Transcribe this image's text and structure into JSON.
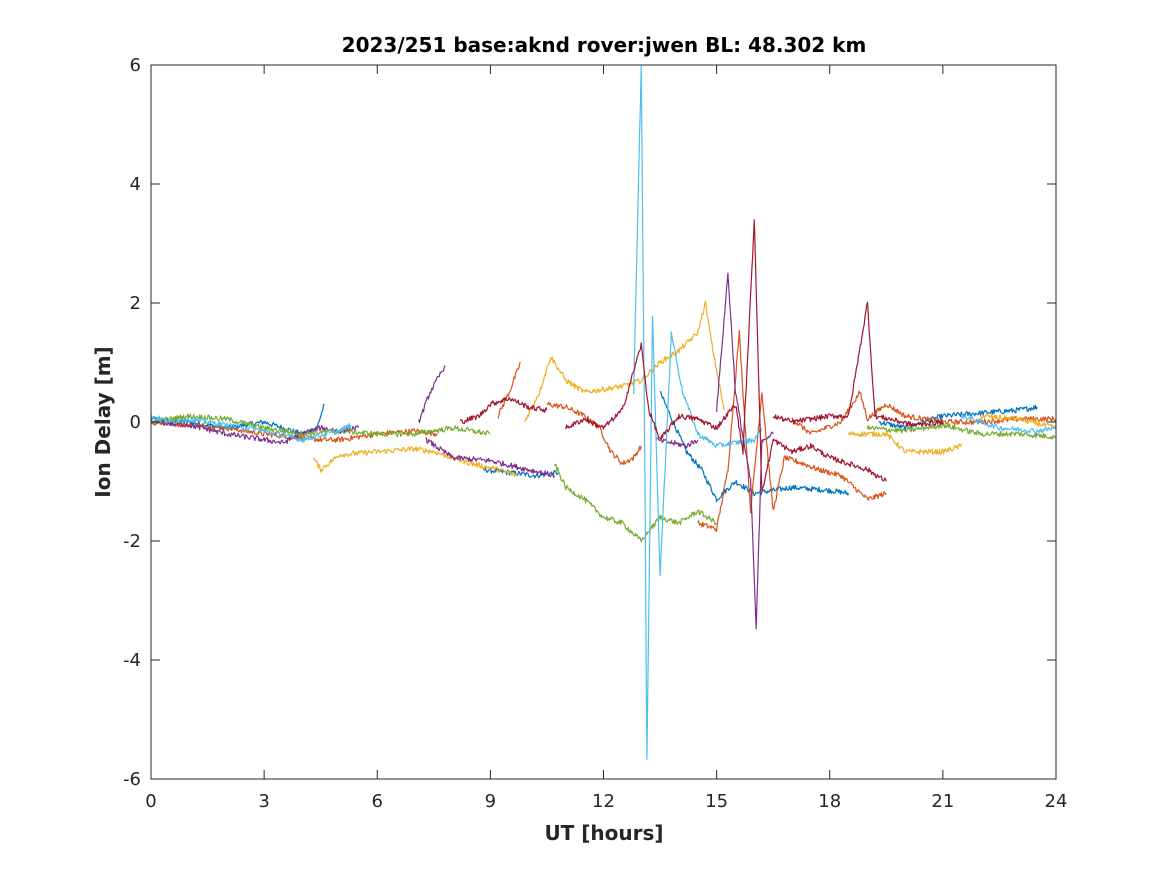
{
  "chart_data": {
    "type": "line",
    "title": "2023/251 base:aknd rover:jwen BL: 48.302 km",
    "xlabel": "UT [hours]",
    "ylabel": "Ion Delay [m]",
    "xlim": [
      0,
      24
    ],
    "ylim": [
      -6,
      6
    ],
    "xticks": [
      0,
      3,
      6,
      9,
      12,
      15,
      18,
      21,
      24
    ],
    "yticks": [
      -6,
      -4,
      -2,
      0,
      2,
      4,
      6
    ],
    "grid": false,
    "legend": "none",
    "series": [
      {
        "color": "#0072BD",
        "segments": [
          [
            [
              0,
              0.05
            ],
            [
              1,
              0
            ],
            [
              2,
              -0.1
            ],
            [
              3,
              0
            ],
            [
              4,
              -0.2
            ],
            [
              4.4,
              -0.1
            ],
            [
              4.6,
              0.3
            ]
          ],
          [
            [
              8.8,
              -0.8
            ],
            [
              9.5,
              -0.85
            ],
            [
              10.2,
              -0.9
            ],
            [
              10.8,
              -0.85
            ]
          ],
          [
            [
              13.5,
              0.5
            ],
            [
              14.2,
              -0.5
            ],
            [
              14.6,
              -0.8
            ],
            [
              15,
              -1.3
            ],
            [
              15.5,
              -1
            ],
            [
              16,
              -1.2
            ],
            [
              17,
              -1.1
            ],
            [
              18,
              -1.15
            ],
            [
              18.5,
              -1.2
            ]
          ],
          [
            [
              19.3,
              0
            ],
            [
              20,
              -0.1
            ],
            [
              21,
              0.1
            ],
            [
              22,
              0.15
            ],
            [
              23,
              0.2
            ],
            [
              23.5,
              0.25
            ]
          ]
        ]
      },
      {
        "color": "#D95319",
        "segments": [
          [
            [
              0,
              0
            ],
            [
              2,
              -0.1
            ],
            [
              3,
              -0.2
            ],
            [
              4.5,
              -0.3
            ],
            [
              5,
              -0.3
            ],
            [
              6,
              -0.2
            ],
            [
              7,
              -0.15
            ],
            [
              7.6,
              -0.2
            ]
          ],
          [
            [
              9.2,
              0.1
            ],
            [
              9.5,
              0.5
            ],
            [
              9.8,
              1
            ]
          ],
          [
            [
              10.5,
              0.3
            ],
            [
              11,
              0.25
            ],
            [
              11.5,
              0.1
            ],
            [
              11.9,
              -0.1
            ],
            [
              12.2,
              -0.5
            ],
            [
              12.5,
              -0.7
            ],
            [
              12.8,
              -0.6
            ],
            [
              13,
              -0.4
            ]
          ],
          [
            [
              14.5,
              -1.7
            ],
            [
              15,
              -1.8
            ],
            [
              15.3,
              -0.8
            ],
            [
              15.6,
              1.5
            ],
            [
              15.9,
              -1.5
            ],
            [
              16.2,
              0.5
            ],
            [
              16.5,
              -1.5
            ],
            [
              16.8,
              -0.6
            ],
            [
              17.3,
              -0.7
            ],
            [
              17.7,
              -0.8
            ],
            [
              18.3,
              -0.9
            ],
            [
              19,
              -1.3
            ],
            [
              19.5,
              -1.2
            ]
          ],
          [
            [
              17,
              0.05
            ],
            [
              17.5,
              -0.2
            ],
            [
              18.3,
              0
            ],
            [
              18.8,
              0.5
            ],
            [
              19,
              0.05
            ],
            [
              19.5,
              0.3
            ],
            [
              20,
              0.1
            ],
            [
              21,
              0
            ],
            [
              22,
              0
            ],
            [
              23,
              0.05
            ],
            [
              24,
              0.05
            ]
          ]
        ]
      },
      {
        "color": "#EDB120",
        "segments": [
          [
            [
              4.3,
              -0.6
            ],
            [
              4.5,
              -0.8
            ],
            [
              5,
              -0.55
            ],
            [
              6,
              -0.5
            ],
            [
              7,
              -0.45
            ],
            [
              7.5,
              -0.5
            ],
            [
              8,
              -0.6
            ],
            [
              8.5,
              -0.7
            ],
            [
              9.2,
              -0.8
            ],
            [
              9.7,
              -0.9
            ]
          ],
          [
            [
              9.9,
              0
            ],
            [
              10.3,
              0.5
            ],
            [
              10.6,
              1.1
            ],
            [
              11,
              0.7
            ],
            [
              11.5,
              0.5
            ],
            [
              12,
              0.55
            ],
            [
              12.5,
              0.6
            ],
            [
              13,
              0.7
            ],
            [
              13.5,
              1
            ],
            [
              14,
              1.2
            ],
            [
              14.5,
              1.5
            ],
            [
              14.7,
              2
            ],
            [
              14.9,
              1.2
            ],
            [
              15.2,
              0.2
            ]
          ],
          [
            [
              18.5,
              -0.2
            ],
            [
              19.5,
              -0.2
            ],
            [
              20,
              -0.5
            ],
            [
              21,
              -0.5
            ],
            [
              21.5,
              -0.4
            ]
          ],
          [
            [
              22,
              0.1
            ],
            [
              23,
              0.05
            ],
            [
              24,
              -0.1
            ]
          ]
        ]
      },
      {
        "color": "#7E2F8E",
        "segments": [
          [
            [
              0,
              0
            ],
            [
              1,
              -0.05
            ],
            [
              2,
              -0.2
            ],
            [
              3,
              -0.3
            ],
            [
              3.5,
              -0.35
            ],
            [
              4,
              -0.2
            ],
            [
              4.5,
              -0.1
            ],
            [
              5,
              -0.15
            ],
            [
              5.5,
              -0.1
            ]
          ],
          [
            [
              7.1,
              0
            ],
            [
              7.4,
              0.5
            ],
            [
              7.8,
              0.95
            ]
          ],
          [
            [
              7.3,
              -0.3
            ],
            [
              8,
              -0.6
            ],
            [
              9,
              -0.65
            ],
            [
              10,
              -0.8
            ],
            [
              10.7,
              -0.9
            ]
          ],
          [
            [
              13.4,
              -0.3
            ],
            [
              14.2,
              -0.4
            ],
            [
              14.5,
              -0.3
            ]
          ],
          [
            [
              15,
              0.2
            ],
            [
              15.3,
              2.5
            ],
            [
              15.5,
              0.5
            ],
            [
              15.9,
              -1
            ],
            [
              16.05,
              -3.5
            ],
            [
              16.2,
              -0.3
            ],
            [
              16.5,
              -0.2
            ]
          ]
        ]
      },
      {
        "color": "#77AC30",
        "segments": [
          [
            [
              0,
              0
            ],
            [
              1,
              0.1
            ],
            [
              2,
              0.05
            ],
            [
              3,
              -0.1
            ],
            [
              4,
              -0.2
            ],
            [
              5,
              -0.15
            ],
            [
              6,
              -0.2
            ],
            [
              7,
              -0.2
            ],
            [
              8,
              -0.1
            ],
            [
              9,
              -0.2
            ]
          ],
          [
            [
              10.7,
              -0.7
            ],
            [
              11,
              -1.1
            ],
            [
              11.5,
              -1.3
            ],
            [
              12,
              -1.6
            ],
            [
              12.5,
              -1.7
            ],
            [
              13,
              -2
            ],
            [
              13.5,
              -1.6
            ],
            [
              14,
              -1.7
            ],
            [
              14.5,
              -1.5
            ],
            [
              15,
              -1.7
            ]
          ],
          [
            [
              19,
              -0.1
            ],
            [
              20,
              -0.15
            ],
            [
              21,
              -0.05
            ],
            [
              22,
              -0.2
            ],
            [
              23,
              -0.2
            ],
            [
              24,
              -0.25
            ]
          ]
        ]
      },
      {
        "color": "#4DBEEE",
        "segments": [
          [
            [
              0,
              0.1
            ],
            [
              0.5,
              0
            ],
            [
              1,
              0.05
            ],
            [
              2,
              -0.05
            ],
            [
              3,
              -0.15
            ],
            [
              4,
              -0.3
            ],
            [
              5,
              -0.15
            ],
            [
              5.3,
              -0.05
            ]
          ],
          [
            [
              12.8,
              0.5
            ],
            [
              13,
              6
            ],
            [
              13.1,
              -1
            ],
            [
              13.15,
              -5.7
            ],
            [
              13.3,
              1.8
            ],
            [
              13.5,
              -2.6
            ],
            [
              13.8,
              1.5
            ],
            [
              14.1,
              0.5
            ],
            [
              14.5,
              -0.2
            ],
            [
              15,
              -0.4
            ],
            [
              15.5,
              -0.35
            ],
            [
              16,
              -0.3
            ],
            [
              16.2,
              -0.1
            ]
          ],
          [
            [
              21.5,
              0.1
            ],
            [
              22.5,
              -0.1
            ],
            [
              23.5,
              -0.15
            ],
            [
              24,
              -0.1
            ]
          ]
        ]
      },
      {
        "color": "#A2142F",
        "segments": [
          [
            [
              8.2,
              0
            ],
            [
              8.7,
              0.1
            ],
            [
              9,
              0.3
            ],
            [
              9.5,
              0.4
            ],
            [
              10,
              0.25
            ],
            [
              10.5,
              0.2
            ]
          ],
          [
            [
              11,
              -0.1
            ],
            [
              11.5,
              0.05
            ],
            [
              12,
              -0.1
            ],
            [
              12.5,
              0.2
            ],
            [
              13,
              1.3
            ],
            [
              13.2,
              0.2
            ],
            [
              13.5,
              -0.3
            ],
            [
              14,
              0.1
            ],
            [
              14.5,
              0.05
            ],
            [
              15,
              -0.1
            ],
            [
              15.5,
              0.3
            ],
            [
              15.7,
              -0.5
            ],
            [
              16,
              3.4
            ],
            [
              16.2,
              -1.2
            ],
            [
              16.5,
              -0.3
            ],
            [
              17,
              -0.5
            ],
            [
              17.5,
              -0.4
            ],
            [
              18,
              -0.6
            ],
            [
              18.5,
              -0.7
            ],
            [
              19,
              -0.8
            ],
            [
              19.5,
              -1
            ]
          ],
          [
            [
              16.5,
              0.1
            ],
            [
              17,
              0
            ],
            [
              18,
              0.1
            ],
            [
              18.5,
              0.1
            ],
            [
              19,
              2
            ],
            [
              19.2,
              0.1
            ],
            [
              19.6,
              0.05
            ],
            [
              20.2,
              -0.05
            ],
            [
              21,
              0
            ]
          ]
        ]
      }
    ]
  }
}
